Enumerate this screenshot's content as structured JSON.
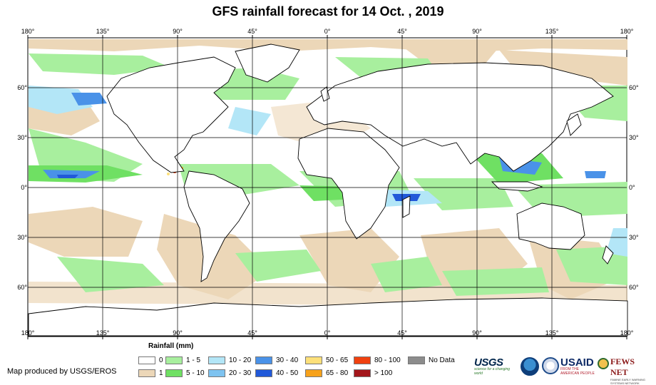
{
  "title": "GFS rainfall forecast for 14 Oct. , 2019",
  "map": {
    "lon_labels_top": [
      "180°",
      "135°",
      "90°",
      "45°",
      "0°",
      "45°",
      "90°",
      "135°",
      "180°"
    ],
    "lon_labels_bottom": [
      "180°",
      "135°",
      "90°",
      "45°",
      "0°",
      "45°",
      "90°",
      "135°",
      "180°"
    ],
    "lat_labels_left": [
      "60°",
      "30°",
      "0°",
      "30°",
      "60°"
    ],
    "lat_labels_right": [
      "60°",
      "30°",
      "0°",
      "30°",
      "60°"
    ]
  },
  "legend": {
    "title": "Rainfall (mm)",
    "items": [
      {
        "label": "0",
        "color": "#ffffff"
      },
      {
        "label": "1",
        "color": "#ecd7b8"
      },
      {
        "label": "1 - 5",
        "color": "#a8ef9e"
      },
      {
        "label": "5 - 10",
        "color": "#6fe063"
      },
      {
        "label": "10 - 20",
        "color": "#b3e6f7"
      },
      {
        "label": "20 - 30",
        "color": "#7ec3f0"
      },
      {
        "label": "30 - 40",
        "color": "#4a92e8"
      },
      {
        "label": "40 - 50",
        "color": "#2159d9"
      },
      {
        "label": "50 - 65",
        "color": "#fde07a"
      },
      {
        "label": "65 - 80",
        "color": "#f7a21b"
      },
      {
        "label": "80 - 100",
        "color": "#f0410f"
      },
      {
        "label": "> 100",
        "color": "#a3161b"
      },
      {
        "label": "No Data",
        "color": "#8c8c8c"
      }
    ]
  },
  "credit": "Map produced by USGS/EROS",
  "logos": {
    "usgs": "USGS",
    "usgs_tagline": "science for a changing world",
    "usaid": "USAID",
    "usaid_tagline": "FROM THE AMERICAN PEOPLE",
    "fews": "FEWS NET",
    "fews_tagline": "FAMINE EARLY WARNING SYSTEMS NETWORK"
  }
}
